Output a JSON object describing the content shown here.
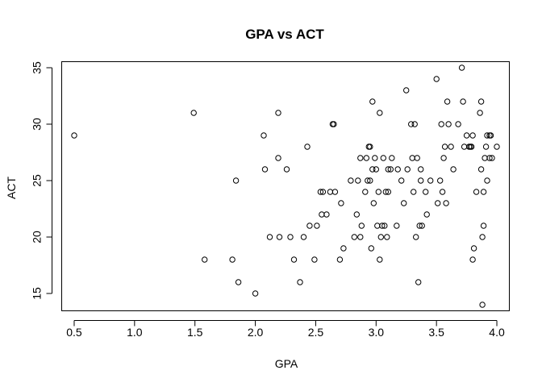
{
  "chart_data": {
    "type": "scatter",
    "title": "GPA vs ACT",
    "xlabel": "GPA",
    "ylabel": "ACT",
    "xlim": [
      0.4,
      4.1
    ],
    "ylim": [
      13.5,
      35.5
    ],
    "xticks": [
      "0.5",
      "1.0",
      "1.5",
      "2.0",
      "2.5",
      "3.0",
      "3.5",
      "4.0"
    ],
    "yticks": [
      "15",
      "20",
      "25",
      "30",
      "35"
    ],
    "grid": false,
    "legend": "none",
    "marker": "open-circle",
    "colors": {
      "marker": "#000000",
      "axes": "#000000",
      "background": "#ffffff"
    },
    "points": [
      {
        "x": 0.5,
        "y": 29
      },
      {
        "x": 1.49,
        "y": 31
      },
      {
        "x": 1.58,
        "y": 18
      },
      {
        "x": 1.81,
        "y": 18
      },
      {
        "x": 1.84,
        "y": 25
      },
      {
        "x": 1.86,
        "y": 16
      },
      {
        "x": 2.0,
        "y": 15
      },
      {
        "x": 2.07,
        "y": 29
      },
      {
        "x": 2.08,
        "y": 26
      },
      {
        "x": 2.12,
        "y": 20
      },
      {
        "x": 2.19,
        "y": 31
      },
      {
        "x": 2.19,
        "y": 27
      },
      {
        "x": 2.2,
        "y": 20
      },
      {
        "x": 2.26,
        "y": 26
      },
      {
        "x": 2.29,
        "y": 20
      },
      {
        "x": 2.32,
        "y": 18
      },
      {
        "x": 2.37,
        "y": 16
      },
      {
        "x": 2.4,
        "y": 20
      },
      {
        "x": 2.43,
        "y": 28
      },
      {
        "x": 2.45,
        "y": 21
      },
      {
        "x": 2.49,
        "y": 18
      },
      {
        "x": 2.51,
        "y": 21
      },
      {
        "x": 2.54,
        "y": 24
      },
      {
        "x": 2.55,
        "y": 22
      },
      {
        "x": 2.56,
        "y": 24
      },
      {
        "x": 2.59,
        "y": 22
      },
      {
        "x": 2.62,
        "y": 24
      },
      {
        "x": 2.64,
        "y": 30
      },
      {
        "x": 2.65,
        "y": 30
      },
      {
        "x": 2.66,
        "y": 24
      },
      {
        "x": 2.7,
        "y": 18
      },
      {
        "x": 2.71,
        "y": 23
      },
      {
        "x": 2.73,
        "y": 19
      },
      {
        "x": 2.79,
        "y": 25
      },
      {
        "x": 2.82,
        "y": 20
      },
      {
        "x": 2.84,
        "y": 22
      },
      {
        "x": 2.85,
        "y": 25
      },
      {
        "x": 2.87,
        "y": 27
      },
      {
        "x": 2.87,
        "y": 20
      },
      {
        "x": 2.88,
        "y": 21
      },
      {
        "x": 2.91,
        "y": 24
      },
      {
        "x": 2.92,
        "y": 27
      },
      {
        "x": 2.93,
        "y": 25
      },
      {
        "x": 2.94,
        "y": 28
      },
      {
        "x": 2.95,
        "y": 25
      },
      {
        "x": 2.95,
        "y": 28
      },
      {
        "x": 2.96,
        "y": 19
      },
      {
        "x": 2.97,
        "y": 26
      },
      {
        "x": 2.97,
        "y": 32
      },
      {
        "x": 2.98,
        "y": 23
      },
      {
        "x": 2.99,
        "y": 27
      },
      {
        "x": 3.0,
        "y": 26
      },
      {
        "x": 3.01,
        "y": 21
      },
      {
        "x": 3.02,
        "y": 24
      },
      {
        "x": 3.03,
        "y": 31
      },
      {
        "x": 3.03,
        "y": 18
      },
      {
        "x": 3.04,
        "y": 20
      },
      {
        "x": 3.05,
        "y": 21
      },
      {
        "x": 3.06,
        "y": 27
      },
      {
        "x": 3.07,
        "y": 21
      },
      {
        "x": 3.08,
        "y": 24
      },
      {
        "x": 3.09,
        "y": 20
      },
      {
        "x": 3.1,
        "y": 24
      },
      {
        "x": 3.1,
        "y": 26
      },
      {
        "x": 3.12,
        "y": 26
      },
      {
        "x": 3.13,
        "y": 27
      },
      {
        "x": 3.17,
        "y": 21
      },
      {
        "x": 3.18,
        "y": 26
      },
      {
        "x": 3.21,
        "y": 25
      },
      {
        "x": 3.23,
        "y": 23
      },
      {
        "x": 3.25,
        "y": 33
      },
      {
        "x": 3.26,
        "y": 26
      },
      {
        "x": 3.29,
        "y": 30
      },
      {
        "x": 3.3,
        "y": 27
      },
      {
        "x": 3.31,
        "y": 24
      },
      {
        "x": 3.32,
        "y": 30
      },
      {
        "x": 3.33,
        "y": 20
      },
      {
        "x": 3.34,
        "y": 27
      },
      {
        "x": 3.35,
        "y": 16
      },
      {
        "x": 3.36,
        "y": 21
      },
      {
        "x": 3.37,
        "y": 26
      },
      {
        "x": 3.37,
        "y": 25
      },
      {
        "x": 3.38,
        "y": 21
      },
      {
        "x": 3.41,
        "y": 24
      },
      {
        "x": 3.42,
        "y": 22
      },
      {
        "x": 3.45,
        "y": 25
      },
      {
        "x": 3.5,
        "y": 34
      },
      {
        "x": 3.51,
        "y": 23
      },
      {
        "x": 3.53,
        "y": 25
      },
      {
        "x": 3.54,
        "y": 30
      },
      {
        "x": 3.55,
        "y": 24
      },
      {
        "x": 3.56,
        "y": 27
      },
      {
        "x": 3.57,
        "y": 28
      },
      {
        "x": 3.58,
        "y": 23
      },
      {
        "x": 3.59,
        "y": 32
      },
      {
        "x": 3.6,
        "y": 30
      },
      {
        "x": 3.62,
        "y": 28
      },
      {
        "x": 3.64,
        "y": 26
      },
      {
        "x": 3.68,
        "y": 30
      },
      {
        "x": 3.71,
        "y": 35
      },
      {
        "x": 3.72,
        "y": 32
      },
      {
        "x": 3.73,
        "y": 28
      },
      {
        "x": 3.75,
        "y": 29
      },
      {
        "x": 3.77,
        "y": 28
      },
      {
        "x": 3.78,
        "y": 28
      },
      {
        "x": 3.79,
        "y": 28
      },
      {
        "x": 3.8,
        "y": 29
      },
      {
        "x": 3.8,
        "y": 18
      },
      {
        "x": 3.81,
        "y": 19
      },
      {
        "x": 3.83,
        "y": 24
      },
      {
        "x": 3.86,
        "y": 31
      },
      {
        "x": 3.87,
        "y": 26
      },
      {
        "x": 3.87,
        "y": 32
      },
      {
        "x": 3.88,
        "y": 14
      },
      {
        "x": 3.88,
        "y": 20
      },
      {
        "x": 3.89,
        "y": 24
      },
      {
        "x": 3.89,
        "y": 21
      },
      {
        "x": 3.9,
        "y": 27
      },
      {
        "x": 3.91,
        "y": 28
      },
      {
        "x": 3.92,
        "y": 25
      },
      {
        "x": 3.92,
        "y": 29
      },
      {
        "x": 3.94,
        "y": 27
      },
      {
        "x": 3.94,
        "y": 29
      },
      {
        "x": 3.95,
        "y": 29
      },
      {
        "x": 3.96,
        "y": 27
      },
      {
        "x": 4.0,
        "y": 28
      }
    ]
  }
}
